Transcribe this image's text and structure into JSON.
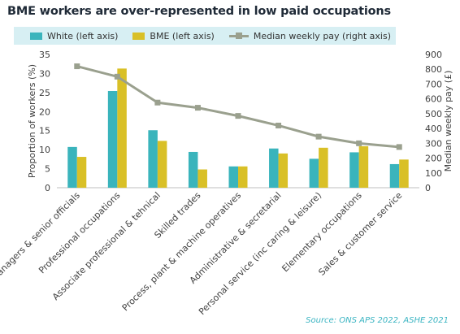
{
  "chart_data": {
    "type": "bar",
    "title": "BME workers are over-represented in low paid occupations",
    "categories": [
      "Managers & senior officials",
      "Professional occupations",
      "Associate professional & tehnical",
      "Skilled trades",
      "Process, plant & machine operatives",
      "Administrative & secretarial",
      "Personal service (inc caring & leisure)",
      "Elementary occupations",
      "Sales & customer service"
    ],
    "series": [
      {
        "name": "White (left axis)",
        "type": "bar",
        "axis": "left",
        "color": "#3ab4bc",
        "values": [
          10.7,
          25.4,
          15.1,
          9.4,
          5.6,
          10.3,
          7.6,
          9.3,
          6.2
        ]
      },
      {
        "name": "BME (left axis)",
        "type": "bar",
        "axis": "left",
        "color": "#d9c027",
        "values": [
          8.1,
          31.3,
          12.3,
          4.8,
          5.6,
          9.0,
          10.5,
          10.9,
          7.4
        ]
      },
      {
        "name": "Median weekly pay (right axis)",
        "type": "line",
        "axis": "right",
        "color": "#9aa08e",
        "values": [
          820,
          750,
          575,
          540,
          485,
          420,
          345,
          300,
          275
        ]
      }
    ],
    "ylabel": "Proportion of workers (%)",
    "ylabel_right": "Median weekly pay (£)",
    "ylim": [
      0,
      35
    ],
    "ylim_right": [
      0,
      900
    ],
    "yticks": [
      "0",
      "5",
      "10",
      "15",
      "20",
      "25",
      "30",
      "35"
    ],
    "yticks_right": [
      "0",
      "100",
      "200",
      "300",
      "400",
      "500",
      "600",
      "700",
      "800",
      "900"
    ],
    "grid": false,
    "legend_position": "top",
    "source": "Source: ONS APS 2022, ASHE 2021"
  }
}
